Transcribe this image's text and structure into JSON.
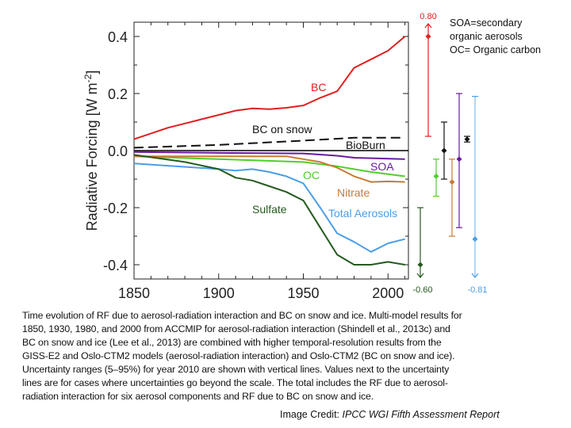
{
  "chart_data": {
    "type": "line",
    "xlabel": "",
    "ylabel": "Radiative Forcing [W m-2]",
    "xlim": [
      1850,
      2012
    ],
    "ylim": [
      -0.44,
      0.45
    ],
    "xticks": [
      1850,
      1900,
      1950,
      2000
    ],
    "yticks": [
      0.4,
      0.2,
      0.0,
      -0.2,
      -0.4
    ],
    "ytick_labels": [
      "0.4",
      "0.2",
      "0.0",
      "-0.2",
      "-0.4"
    ],
    "xtick_labels": [
      "1850",
      "1900",
      "1950",
      "2000"
    ],
    "series": [
      {
        "name": "BC",
        "color": "#e0201e",
        "dash": false,
        "x": [
          1850,
          1860,
          1870,
          1880,
          1890,
          1900,
          1910,
          1920,
          1930,
          1940,
          1950,
          1960,
          1970,
          1980,
          1990,
          2000,
          2010
        ],
        "y": [
          0.04,
          0.06,
          0.08,
          0.095,
          0.11,
          0.125,
          0.14,
          0.148,
          0.145,
          0.15,
          0.158,
          0.185,
          0.208,
          0.29,
          0.32,
          0.35,
          0.4
        ]
      },
      {
        "name": "BC on snow",
        "color": "#111111",
        "dash": true,
        "x": [
          1850,
          1900,
          1950,
          1980,
          2010
        ],
        "y": [
          0.01,
          0.02,
          0.035,
          0.045,
          0.045
        ]
      },
      {
        "name": "BioBurn",
        "color": "#000000",
        "dash": false,
        "x": [
          1850,
          2012
        ],
        "y": [
          0.0,
          0.0
        ]
      },
      {
        "name": "SOA",
        "color": "#6a1aa0",
        "dash": false,
        "x": [
          1850,
          1900,
          1950,
          1970,
          1980,
          2010
        ],
        "y": [
          -0.005,
          -0.008,
          -0.01,
          -0.018,
          -0.025,
          -0.03
        ]
      },
      {
        "name": "OC",
        "color": "#4fcf2a",
        "dash": false,
        "x": [
          1850,
          1900,
          1950,
          1970,
          1990,
          2010
        ],
        "y": [
          -0.02,
          -0.03,
          -0.04,
          -0.055,
          -0.075,
          -0.09
        ]
      },
      {
        "name": "Nitrate",
        "color": "#c87a35",
        "dash": false,
        "x": [
          1850,
          1940,
          1950,
          1960,
          1970,
          1980,
          1990,
          2000,
          2010
        ],
        "y": [
          -0.02,
          -0.02,
          -0.03,
          -0.04,
          -0.06,
          -0.09,
          -0.11,
          -0.108,
          -0.11
        ]
      },
      {
        "name": "Total Aerosols",
        "color": "#4a9ee8",
        "dash": false,
        "x": [
          1850,
          1900,
          1910,
          1920,
          1930,
          1940,
          1950,
          1960,
          1970,
          1980,
          1990,
          2000,
          2010
        ],
        "y": [
          -0.045,
          -0.065,
          -0.07,
          -0.065,
          -0.075,
          -0.09,
          -0.115,
          -0.2,
          -0.29,
          -0.32,
          -0.355,
          -0.325,
          -0.31
        ]
      },
      {
        "name": "Sulfate",
        "color": "#245a1e",
        "dash": false,
        "x": [
          1850,
          1880,
          1900,
          1910,
          1920,
          1930,
          1940,
          1950,
          1960,
          1970,
          1980,
          1990,
          2000,
          2010
        ],
        "y": [
          -0.015,
          -0.04,
          -0.065,
          -0.095,
          -0.105,
          -0.125,
          -0.145,
          -0.175,
          -0.27,
          -0.365,
          -0.4,
          -0.4,
          -0.39,
          -0.4
        ]
      }
    ],
    "uncertainty_2010": [
      {
        "series": "Sulfate",
        "color": "#245a1e",
        "value": -0.4,
        "low": -0.6,
        "high": -0.2,
        "low_label": "-0.60",
        "arrow": "down"
      },
      {
        "series": "BC",
        "color": "#e0201e",
        "value": 0.4,
        "low": 0.05,
        "high": 0.8,
        "high_label": "0.80",
        "arrow": "up"
      },
      {
        "series": "OC",
        "color": "#4fcf2a",
        "value": -0.09,
        "low": -0.16,
        "high": -0.03
      },
      {
        "series": "BioBurn",
        "color": "#111111",
        "value": 0.0,
        "low": -0.1,
        "high": 0.1
      },
      {
        "series": "Nitrate",
        "color": "#c87a35",
        "value": -0.11,
        "low": -0.3,
        "high": -0.03
      },
      {
        "series": "SOA",
        "color": "#6a1aa0",
        "value": -0.03,
        "low": -0.27,
        "high": 0.2
      },
      {
        "series": "BC on snow",
        "color": "#111111",
        "value": 0.04,
        "low": 0.03,
        "high": 0.05
      },
      {
        "series": "Total Aerosols",
        "color": "#4a9ee8",
        "value": -0.31,
        "low": -0.81,
        "high": 0.19,
        "low_label": "-0.81",
        "arrow": "down"
      }
    ]
  },
  "note": [
    "SOA=secondary",
    "organic aerosols",
    "OC= Organic carbon"
  ],
  "caption": [
    "Time evolution of RF due to aerosol-radiation interaction and BC on snow and ice. Multi-model results for",
    "1850, 1930, 1980, and 2000 from ACCMIP for aerosol-radiation interaction (Shindell et al., 2013c) and",
    "BC on snow and ice (Lee et al., 2013) are combined with higher temporal-resolution results from the",
    "GISS-E2 and Oslo-CTM2 models (aerosol-radiation interaction) and Oslo-CTM2 (BC on snow and ice).",
    "Uncertainty ranges (5–95%) for year 2010 are shown with vertical lines. Values next to the uncertainty",
    "lines are for cases where uncertainties go beyond the scale. The total includes the RF due to aerosol-",
    "radiation interaction for six aerosol components and RF due to BC on snow and ice."
  ],
  "credit": {
    "prefix": "Image Credit: ",
    "source": "IPCC WGI Fifth Assessment Report"
  }
}
